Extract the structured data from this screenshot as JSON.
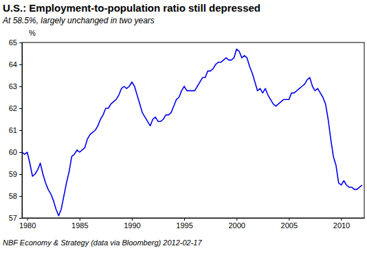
{
  "chart_data": {
    "type": "line",
    "title": "U.S.: Employment-to-population ratio still depressed",
    "subtitle": "At 58.5%, largely unchanged in two years",
    "ylabel": "%",
    "source": "NBF Economy & Strategy (data via Bloomberg) 2012-02-17",
    "color": "#0000ee",
    "grid": false,
    "xlim": [
      1979.5,
      2012.2
    ],
    "xticks": [
      1980,
      1985,
      1990,
      1995,
      2000,
      2005,
      2010
    ],
    "ylim": [
      57,
      65
    ],
    "yticks": [
      57,
      58,
      59,
      60,
      61,
      62,
      63,
      64,
      65
    ],
    "x": [
      1979.5,
      1979.75,
      1980,
      1980.25,
      1980.5,
      1980.75,
      1981,
      1981.25,
      1981.5,
      1981.75,
      1982,
      1982.25,
      1982.5,
      1982.75,
      1983,
      1983.25,
      1983.5,
      1983.75,
      1984,
      1984.25,
      1984.5,
      1984.75,
      1985,
      1985.25,
      1985.5,
      1985.75,
      1986,
      1986.25,
      1986.5,
      1986.75,
      1987,
      1987.25,
      1987.5,
      1987.75,
      1988,
      1988.25,
      1988.5,
      1988.75,
      1989,
      1989.25,
      1989.5,
      1989.75,
      1990,
      1990.25,
      1990.5,
      1990.75,
      1991,
      1991.25,
      1991.5,
      1991.75,
      1992,
      1992.25,
      1992.5,
      1992.75,
      1993,
      1993.25,
      1993.5,
      1993.75,
      1994,
      1994.25,
      1994.5,
      1994.75,
      1995,
      1995.25,
      1995.5,
      1995.75,
      1996,
      1996.25,
      1996.5,
      1996.75,
      1997,
      1997.25,
      1997.5,
      1997.75,
      1998,
      1998.25,
      1998.5,
      1998.75,
      1999,
      1999.25,
      1999.5,
      1999.75,
      2000,
      2000.25,
      2000.5,
      2000.75,
      2001,
      2001.25,
      2001.5,
      2001.75,
      2002,
      2002.25,
      2002.5,
      2002.75,
      2003,
      2003.25,
      2003.5,
      2003.75,
      2004,
      2004.25,
      2004.5,
      2004.75,
      2005,
      2005.25,
      2005.5,
      2005.75,
      2006,
      2006.25,
      2006.5,
      2006.75,
      2007,
      2007.25,
      2007.5,
      2007.75,
      2008,
      2008.25,
      2008.5,
      2008.75,
      2009,
      2009.25,
      2009.5,
      2009.75,
      2010,
      2010.25,
      2010.5,
      2010.75,
      2011,
      2011.25,
      2011.5,
      2011.75,
      2012
    ],
    "values": [
      60.0,
      59.9,
      60.0,
      59.5,
      58.9,
      59.0,
      59.2,
      59.5,
      59.0,
      58.6,
      58.3,
      58.1,
      57.8,
      57.4,
      57.1,
      57.4,
      58.0,
      58.6,
      59.1,
      59.8,
      59.9,
      60.1,
      60.0,
      60.1,
      60.2,
      60.6,
      60.8,
      60.9,
      61.0,
      61.2,
      61.5,
      61.7,
      62.0,
      62.0,
      62.2,
      62.3,
      62.4,
      62.6,
      62.9,
      63.0,
      62.9,
      63.0,
      63.2,
      63.0,
      62.6,
      62.2,
      61.8,
      61.6,
      61.4,
      61.2,
      61.5,
      61.6,
      61.4,
      61.4,
      61.5,
      61.7,
      61.7,
      61.8,
      62.1,
      62.4,
      62.5,
      62.8,
      63.0,
      62.8,
      62.8,
      62.8,
      62.8,
      63.0,
      63.2,
      63.4,
      63.4,
      63.7,
      63.7,
      63.8,
      64.0,
      64.1,
      64.1,
      64.2,
      64.3,
      64.2,
      64.2,
      64.3,
      64.7,
      64.6,
      64.3,
      64.4,
      64.3,
      63.9,
      63.6,
      63.2,
      62.8,
      62.9,
      62.7,
      62.9,
      62.6,
      62.4,
      62.2,
      62.1,
      62.2,
      62.3,
      62.4,
      62.4,
      62.4,
      62.7,
      62.7,
      62.8,
      62.9,
      63.0,
      63.1,
      63.3,
      63.4,
      63.0,
      62.8,
      62.9,
      62.7,
      62.5,
      62.2,
      61.5,
      60.6,
      59.8,
      59.4,
      58.6,
      58.5,
      58.7,
      58.5,
      58.4,
      58.4,
      58.3,
      58.3,
      58.4,
      58.5
    ]
  }
}
